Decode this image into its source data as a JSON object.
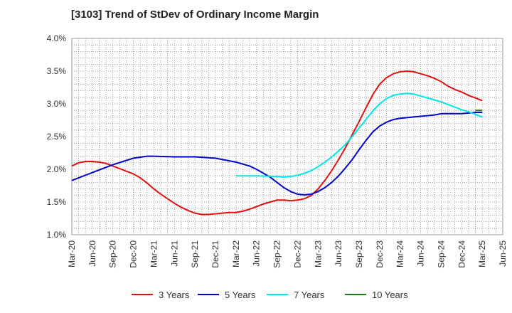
{
  "chart_data": {
    "type": "line",
    "title": "[3103]  Trend of StDev of Ordinary Income Margin",
    "xlabel": "",
    "ylabel": "",
    "x_ticks": [
      "Mar-20",
      "Jun-20",
      "Sep-20",
      "Dec-20",
      "Mar-21",
      "Jun-21",
      "Sep-21",
      "Dec-21",
      "Mar-22",
      "Jun-22",
      "Sep-22",
      "Dec-22",
      "Mar-23",
      "Jun-23",
      "Sep-23",
      "Dec-23",
      "Mar-24",
      "Jun-24",
      "Sep-24",
      "Dec-24",
      "Mar-25",
      "Jun-25"
    ],
    "y_ticks": [
      "1.0%",
      "1.5%",
      "2.0%",
      "2.5%",
      "3.0%",
      "3.5%",
      "4.0%"
    ],
    "ylim": [
      1.0,
      4.0
    ],
    "grid": true,
    "legend_position": "bottom",
    "series": [
      {
        "name": "3 Years",
        "color": "#dd1111",
        "points": [
          [
            "Mar-20",
            2.05
          ],
          [
            "Apr-20",
            2.1
          ],
          [
            "May-20",
            2.12
          ],
          [
            "Jun-20",
            2.12
          ],
          [
            "Jul-20",
            2.11
          ],
          [
            "Aug-20",
            2.09
          ],
          [
            "Sep-20",
            2.05
          ],
          [
            "Oct-20",
            2.01
          ],
          [
            "Nov-20",
            1.97
          ],
          [
            "Dec-20",
            1.93
          ],
          [
            "Jan-21",
            1.87
          ],
          [
            "Feb-21",
            1.79
          ],
          [
            "Mar-21",
            1.7
          ],
          [
            "Apr-21",
            1.62
          ],
          [
            "May-21",
            1.55
          ],
          [
            "Jun-21",
            1.48
          ],
          [
            "Jul-21",
            1.42
          ],
          [
            "Aug-21",
            1.37
          ],
          [
            "Sep-21",
            1.33
          ],
          [
            "Oct-21",
            1.31
          ],
          [
            "Nov-21",
            1.31
          ],
          [
            "Dec-21",
            1.32
          ],
          [
            "Jan-22",
            1.33
          ],
          [
            "Feb-22",
            1.34
          ],
          [
            "Mar-22",
            1.34
          ],
          [
            "Apr-22",
            1.36
          ],
          [
            "May-22",
            1.39
          ],
          [
            "Jun-22",
            1.43
          ],
          [
            "Jul-22",
            1.47
          ],
          [
            "Aug-22",
            1.5
          ],
          [
            "Sep-22",
            1.53
          ],
          [
            "Oct-22",
            1.53
          ],
          [
            "Nov-22",
            1.52
          ],
          [
            "Dec-22",
            1.53
          ],
          [
            "Jan-23",
            1.55
          ],
          [
            "Feb-23",
            1.6
          ],
          [
            "Mar-23",
            1.7
          ],
          [
            "Apr-23",
            1.83
          ],
          [
            "May-23",
            1.98
          ],
          [
            "Jun-23",
            2.15
          ],
          [
            "Jul-23",
            2.33
          ],
          [
            "Aug-23",
            2.53
          ],
          [
            "Sep-23",
            2.73
          ],
          [
            "Oct-23",
            2.94
          ],
          [
            "Nov-23",
            3.14
          ],
          [
            "Dec-23",
            3.3
          ],
          [
            "Jan-24",
            3.4
          ],
          [
            "Feb-24",
            3.46
          ],
          [
            "Mar-24",
            3.49
          ],
          [
            "Apr-24",
            3.5
          ],
          [
            "May-24",
            3.49
          ],
          [
            "Jun-24",
            3.46
          ],
          [
            "Jul-24",
            3.43
          ],
          [
            "Aug-24",
            3.39
          ],
          [
            "Sep-24",
            3.34
          ],
          [
            "Oct-24",
            3.27
          ],
          [
            "Nov-24",
            3.22
          ],
          [
            "Dec-24",
            3.18
          ],
          [
            "Jan-25",
            3.13
          ],
          [
            "Feb-25",
            3.09
          ],
          [
            "Mar-25",
            3.05
          ]
        ]
      },
      {
        "name": "5 Years",
        "color": "#0000cc",
        "points": [
          [
            "Mar-20",
            1.83
          ],
          [
            "Jun-20",
            1.95
          ],
          [
            "Sep-20",
            2.07
          ],
          [
            "Dec-20",
            2.17
          ],
          [
            "Feb-21",
            2.2
          ],
          [
            "Mar-21",
            2.2
          ],
          [
            "Jun-21",
            2.19
          ],
          [
            "Sep-21",
            2.19
          ],
          [
            "Dec-21",
            2.17
          ],
          [
            "Mar-22",
            2.11
          ],
          [
            "May-22",
            2.05
          ],
          [
            "Jun-22",
            2.0
          ],
          [
            "Aug-22",
            1.88
          ],
          [
            "Sep-22",
            1.8
          ],
          [
            "Oct-22",
            1.72
          ],
          [
            "Nov-22",
            1.66
          ],
          [
            "Dec-22",
            1.62
          ],
          [
            "Jan-23",
            1.61
          ],
          [
            "Feb-23",
            1.62
          ],
          [
            "Mar-23",
            1.66
          ],
          [
            "Apr-23",
            1.72
          ],
          [
            "May-23",
            1.8
          ],
          [
            "Jun-23",
            1.9
          ],
          [
            "Jul-23",
            2.02
          ],
          [
            "Aug-23",
            2.15
          ],
          [
            "Sep-23",
            2.3
          ],
          [
            "Oct-23",
            2.44
          ],
          [
            "Nov-23",
            2.57
          ],
          [
            "Dec-23",
            2.66
          ],
          [
            "Jan-24",
            2.72
          ],
          [
            "Feb-24",
            2.76
          ],
          [
            "Mar-24",
            2.78
          ],
          [
            "Apr-24",
            2.79
          ],
          [
            "May-24",
            2.8
          ],
          [
            "Jun-24",
            2.81
          ],
          [
            "Jul-24",
            2.82
          ],
          [
            "Aug-24",
            2.83
          ],
          [
            "Sep-24",
            2.85
          ],
          [
            "Oct-24",
            2.85
          ],
          [
            "Nov-24",
            2.85
          ],
          [
            "Dec-24",
            2.85
          ],
          [
            "Jan-25",
            2.86
          ],
          [
            "Feb-25",
            2.87
          ],
          [
            "Mar-25",
            2.87
          ]
        ]
      },
      {
        "name": "7 Years",
        "color": "#00e5e5",
        "points": [
          [
            "Mar-22",
            1.9
          ],
          [
            "Jun-22",
            1.9
          ],
          [
            "Sep-22",
            1.89
          ],
          [
            "Oct-22",
            1.88
          ],
          [
            "Nov-22",
            1.89
          ],
          [
            "Dec-22",
            1.91
          ],
          [
            "Jan-23",
            1.94
          ],
          [
            "Feb-23",
            1.98
          ],
          [
            "Mar-23",
            2.04
          ],
          [
            "Apr-23",
            2.11
          ],
          [
            "May-23",
            2.19
          ],
          [
            "Jun-23",
            2.28
          ],
          [
            "Jul-23",
            2.38
          ],
          [
            "Aug-23",
            2.5
          ],
          [
            "Sep-23",
            2.63
          ],
          [
            "Oct-23",
            2.76
          ],
          [
            "Nov-23",
            2.89
          ],
          [
            "Dec-23",
            3.0
          ],
          [
            "Jan-24",
            3.08
          ],
          [
            "Feb-24",
            3.13
          ],
          [
            "Mar-24",
            3.15
          ],
          [
            "Apr-24",
            3.16
          ],
          [
            "May-24",
            3.15
          ],
          [
            "Jun-24",
            3.12
          ],
          [
            "Jul-24",
            3.09
          ],
          [
            "Aug-24",
            3.06
          ],
          [
            "Sep-24",
            3.03
          ],
          [
            "Oct-24",
            2.99
          ],
          [
            "Nov-24",
            2.95
          ],
          [
            "Dec-24",
            2.91
          ],
          [
            "Jan-25",
            2.88
          ],
          [
            "Feb-25",
            2.84
          ],
          [
            "Mar-25",
            2.8
          ]
        ]
      },
      {
        "name": "10 Years",
        "color": "#1a7a1a",
        "points": [
          [
            "Feb-25",
            2.9
          ],
          [
            "Mar-25",
            2.9
          ]
        ]
      }
    ]
  }
}
